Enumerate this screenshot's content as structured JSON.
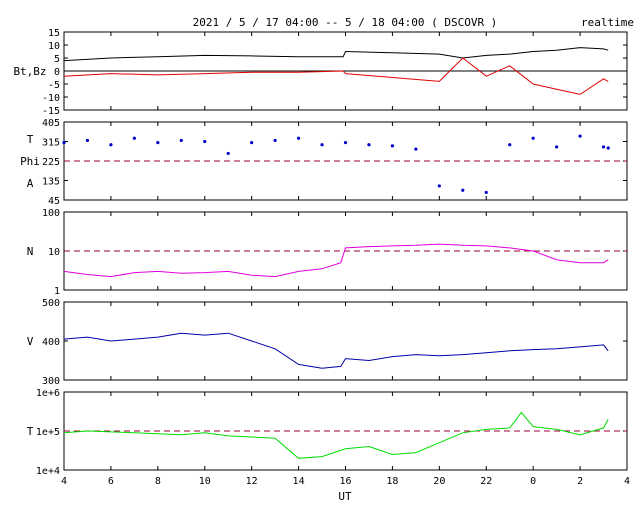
{
  "title": "2021 / 5 / 17  04:00 -- 5 / 18  04:00 ( DSCOVR )",
  "corner_label": "realtime",
  "x_axis_label": "UT",
  "x_ticks": [
    "4",
    "6",
    "8",
    "10",
    "12",
    "14",
    "16",
    "18",
    "20",
    "22",
    "0",
    "2",
    "4"
  ],
  "colors": {
    "bt": "#000000",
    "bz": "#e00000",
    "phi": "#0000cc",
    "density": "#e000e0",
    "speed": "#0000aa",
    "temperature": "#00dd00",
    "ref_line": "#990033"
  },
  "chart_data": [
    {
      "type": "line",
      "panel": "magnetic-field",
      "ylabel": "Bt,Bz",
      "ytick_labels": [
        "15",
        "10",
        "5",
        "0",
        "-5",
        "-10",
        "-15"
      ],
      "yticks": [
        15,
        10,
        5,
        0,
        -5,
        -10,
        -15
      ],
      "ylim": [
        -15,
        15
      ],
      "x_hours": [
        4,
        6,
        8,
        10,
        12,
        14,
        15.9,
        16,
        18,
        20,
        21,
        22,
        23,
        24,
        25,
        26,
        27,
        27.2
      ],
      "series": [
        {
          "key": "bt",
          "values": [
            4,
            5,
            5.5,
            6,
            5.8,
            5.5,
            5.5,
            7.5,
            7,
            6.5,
            5,
            6,
            6.5,
            7.5,
            8,
            9,
            8.5,
            8
          ]
        },
        {
          "key": "bz",
          "values": [
            -2,
            -1,
            -1.5,
            -1,
            -0.5,
            -0.5,
            0,
            -1,
            -2.5,
            -4,
            5,
            -2,
            2,
            -5,
            -7,
            -9,
            -3,
            -4
          ]
        }
      ],
      "reference_line": 0
    },
    {
      "type": "scatter",
      "panel": "phi-angle",
      "ylabel_lines": [
        "T",
        "Phi",
        "A"
      ],
      "ytick_labels": [
        "405",
        "315",
        "225",
        "135",
        "45"
      ],
      "yticks": [
        405,
        315,
        225,
        135,
        45
      ],
      "ylim": [
        45,
        405
      ],
      "x_hours": [
        4,
        5,
        6,
        7,
        8,
        9,
        10,
        11,
        12,
        13,
        14,
        15,
        16,
        17,
        18,
        19,
        20,
        21,
        22,
        23,
        24,
        25,
        26,
        27,
        27.2
      ],
      "values": [
        310,
        320,
        300,
        330,
        310,
        320,
        315,
        260,
        310,
        320,
        330,
        300,
        310,
        300,
        295,
        280,
        110,
        90,
        80,
        300,
        330,
        290,
        340,
        290,
        285
      ],
      "reference_line": 225
    },
    {
      "type": "line",
      "panel": "density",
      "scale": "log",
      "ylabel": "N",
      "ytick_labels": [
        "100",
        "10",
        "1"
      ],
      "yticks": [
        100,
        10,
        1
      ],
      "ylim": [
        1,
        100
      ],
      "x_hours": [
        4,
        5,
        6,
        7,
        8,
        9,
        10,
        11,
        12,
        13,
        14,
        15,
        15.8,
        16,
        17,
        18,
        19,
        20,
        21,
        22,
        23,
        24,
        25,
        26,
        27,
        27.2
      ],
      "values": [
        3,
        2.5,
        2.2,
        2.8,
        3,
        2.7,
        2.8,
        3,
        2.4,
        2.2,
        3,
        3.5,
        5,
        12,
        13,
        13.5,
        14,
        15,
        14,
        13.5,
        12,
        10,
        6,
        5,
        5,
        6
      ],
      "reference_line": 10
    },
    {
      "type": "line",
      "panel": "speed",
      "ylabel": "V",
      "ytick_labels": [
        "500",
        "400",
        "300"
      ],
      "yticks": [
        500,
        400,
        300
      ],
      "ylim": [
        300,
        500
      ],
      "x_hours": [
        4,
        5,
        6,
        7,
        8,
        9,
        10,
        11,
        12,
        13,
        14,
        15,
        15.8,
        16,
        17,
        18,
        19,
        20,
        21,
        22,
        23,
        24,
        25,
        26,
        27,
        27.2
      ],
      "values": [
        405,
        410,
        400,
        405,
        410,
        420,
        415,
        420,
        400,
        380,
        340,
        330,
        335,
        355,
        350,
        360,
        365,
        362,
        365,
        370,
        375,
        378,
        380,
        385,
        390,
        375
      ]
    },
    {
      "type": "line",
      "panel": "temperature",
      "scale": "log",
      "ylabel": "T",
      "ytick_labels": [
        "1e+6",
        "1e+5",
        "1e+4"
      ],
      "yticks": [
        1000000,
        100000,
        10000
      ],
      "ylim": [
        10000,
        1000000
      ],
      "x_hours": [
        4,
        5,
        6,
        7,
        8,
        9,
        10,
        11,
        12,
        13,
        14,
        15,
        16,
        17,
        18,
        19,
        20,
        21,
        22,
        23,
        23.5,
        24,
        25,
        26,
        27,
        27.2
      ],
      "values": [
        90000,
        100000,
        95000,
        90000,
        85000,
        80000,
        90000,
        75000,
        70000,
        65000,
        20000,
        22000,
        35000,
        40000,
        25000,
        28000,
        50000,
        90000,
        110000,
        120000,
        300000,
        130000,
        110000,
        80000,
        120000,
        200000
      ],
      "reference_line": 100000
    }
  ]
}
